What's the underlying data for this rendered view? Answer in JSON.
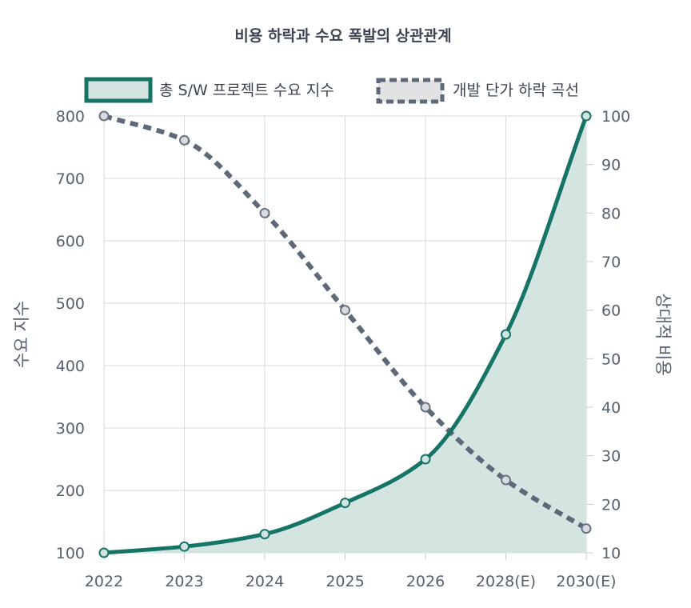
{
  "chart_data": {
    "type": "line",
    "title": "비용 하락과 수요 폭발의 상관관계",
    "categories": [
      "2022",
      "2023",
      "2024",
      "2025",
      "2026",
      "2028(E)",
      "2030(E)"
    ],
    "series": [
      {
        "name": "총 S/W 프로젝트 수요 지수",
        "axis": "left",
        "style": "solid-filled",
        "color": "#157466",
        "fill": "#d3e4e1",
        "values": [
          100,
          110,
          130,
          180,
          250,
          450,
          800
        ]
      },
      {
        "name": "개발 단가 하락 곡선",
        "axis": "right",
        "style": "dashed",
        "color": "#5d6878",
        "fill": "#e2e2e4",
        "values": [
          100,
          95,
          80,
          60,
          40,
          25,
          15
        ]
      }
    ],
    "y_left": {
      "label": "수요 지수",
      "range": [
        100,
        800
      ],
      "ticks": [
        100,
        200,
        300,
        400,
        500,
        600,
        700,
        800
      ]
    },
    "y_right": {
      "label": "상대적 비용",
      "range": [
        10,
        100
      ],
      "ticks": [
        10,
        20,
        30,
        40,
        50,
        60,
        70,
        80,
        90,
        100
      ]
    },
    "legend_position": "top",
    "grid": true
  }
}
